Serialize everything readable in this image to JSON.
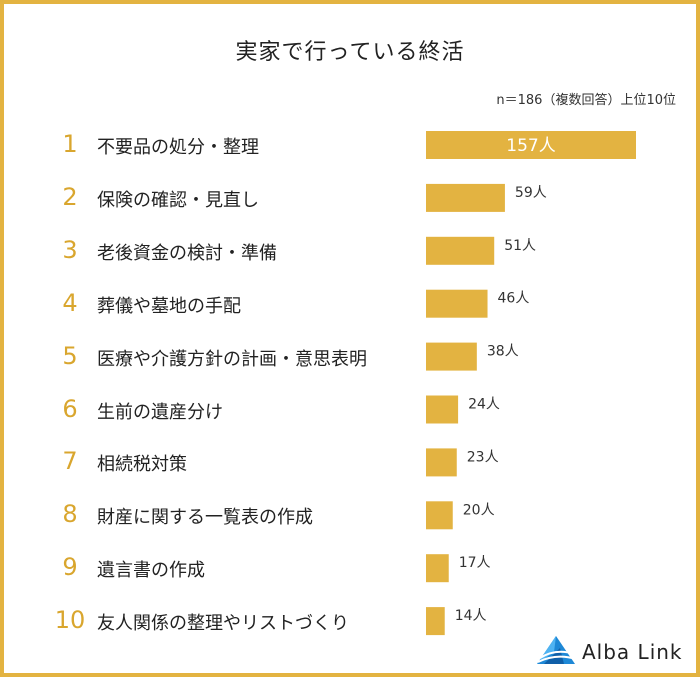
{
  "title": "実家で行っている終活",
  "note": "n＝186（複数回答）上位10位",
  "brand": "Alba Link",
  "colors": {
    "bar": "#E3B341",
    "rank": "#D9A62E",
    "border": "#E3B341"
  },
  "chart_data": {
    "type": "bar",
    "orientation": "horizontal",
    "unit": "人",
    "categories": [
      "不要品の処分・整理",
      "保険の確認・見直し",
      "老後資金の検討・準備",
      "葬儀や墓地の手配",
      "医療や介護方針の計画・意思表明",
      "生前の遺産分け",
      "相続税対策",
      "財産に関する一覧表の作成",
      "遺言書の作成",
      "友人関係の整理やリストづくり"
    ],
    "ranks": [
      "1",
      "2",
      "3",
      "4",
      "5",
      "6",
      "7",
      "8",
      "9",
      "10"
    ],
    "values": [
      157,
      59,
      51,
      46,
      38,
      24,
      23,
      20,
      17,
      14
    ],
    "value_labels": [
      "157人",
      "59人",
      "51人",
      "46人",
      "38人",
      "24人",
      "23人",
      "20人",
      "17人",
      "14人"
    ]
  }
}
